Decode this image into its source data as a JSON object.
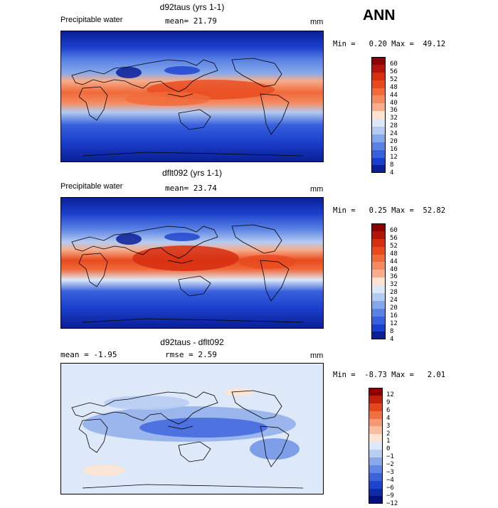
{
  "header": {
    "season": "ANN"
  },
  "panels": [
    {
      "title": "d92taus (yrs 1-1)",
      "variable": "Precipitable water",
      "stat": "mean=  21.79",
      "units": "mm",
      "minmax": "Min =   0.20 Max =  49.12",
      "stats": {
        "mean": 21.79,
        "min": 0.2,
        "max": 49.12
      },
      "levels": [
        "60",
        "56",
        "52",
        "48",
        "44",
        "40",
        "36",
        "32",
        "28",
        "24",
        "20",
        "16",
        "12",
        "8",
        "4"
      ]
    },
    {
      "title": "dflt092 (yrs 1-1)",
      "variable": "Precipitable water",
      "stat": "mean=  23.74",
      "units": "mm",
      "minmax": "Min =   0.25 Max =  52.82",
      "stats": {
        "mean": 23.74,
        "min": 0.25,
        "max": 52.82
      },
      "levels": [
        "60",
        "56",
        "52",
        "48",
        "44",
        "40",
        "36",
        "32",
        "28",
        "24",
        "20",
        "16",
        "12",
        "8",
        "4"
      ]
    },
    {
      "title": "d92taus - dflt092",
      "variable": "",
      "stat_left": "mean =  -1.95",
      "stat": "rmse =   2.59",
      "units": "mm",
      "minmax": "Min =  -8.73 Max =   2.01",
      "stats": {
        "mean": -1.95,
        "rmse": 2.59,
        "min": -8.73,
        "max": 2.01
      },
      "levels": [
        "12",
        "9",
        "6",
        "4",
        "3",
        "2",
        "1",
        "0",
        "−1",
        "−2",
        "−3",
        "−4",
        "−6",
        "−9",
        "−12"
      ]
    }
  ],
  "colors": {
    "abs_scale": [
      "#8b0000",
      "#b3140a",
      "#d62e10",
      "#e84a1e",
      "#f06a3a",
      "#f48a60",
      "#f7ad8c",
      "#fde3cf",
      "#dce8f8",
      "#b4cbf1",
      "#86a8ea",
      "#5a82e4",
      "#3760dc",
      "#1a3fcc",
      "#0a1f96"
    ],
    "diff_scale": [
      "#8b0000",
      "#c0200a",
      "#e2481c",
      "#f07040",
      "#f59874",
      "#f8bd9f",
      "#fde4d2",
      "#dde8f8",
      "#b7cdf2",
      "#8aa9ea",
      "#5f86e3",
      "#3b63dc",
      "#1d43cf",
      "#0d2aa8",
      "#070f7a"
    ]
  }
}
